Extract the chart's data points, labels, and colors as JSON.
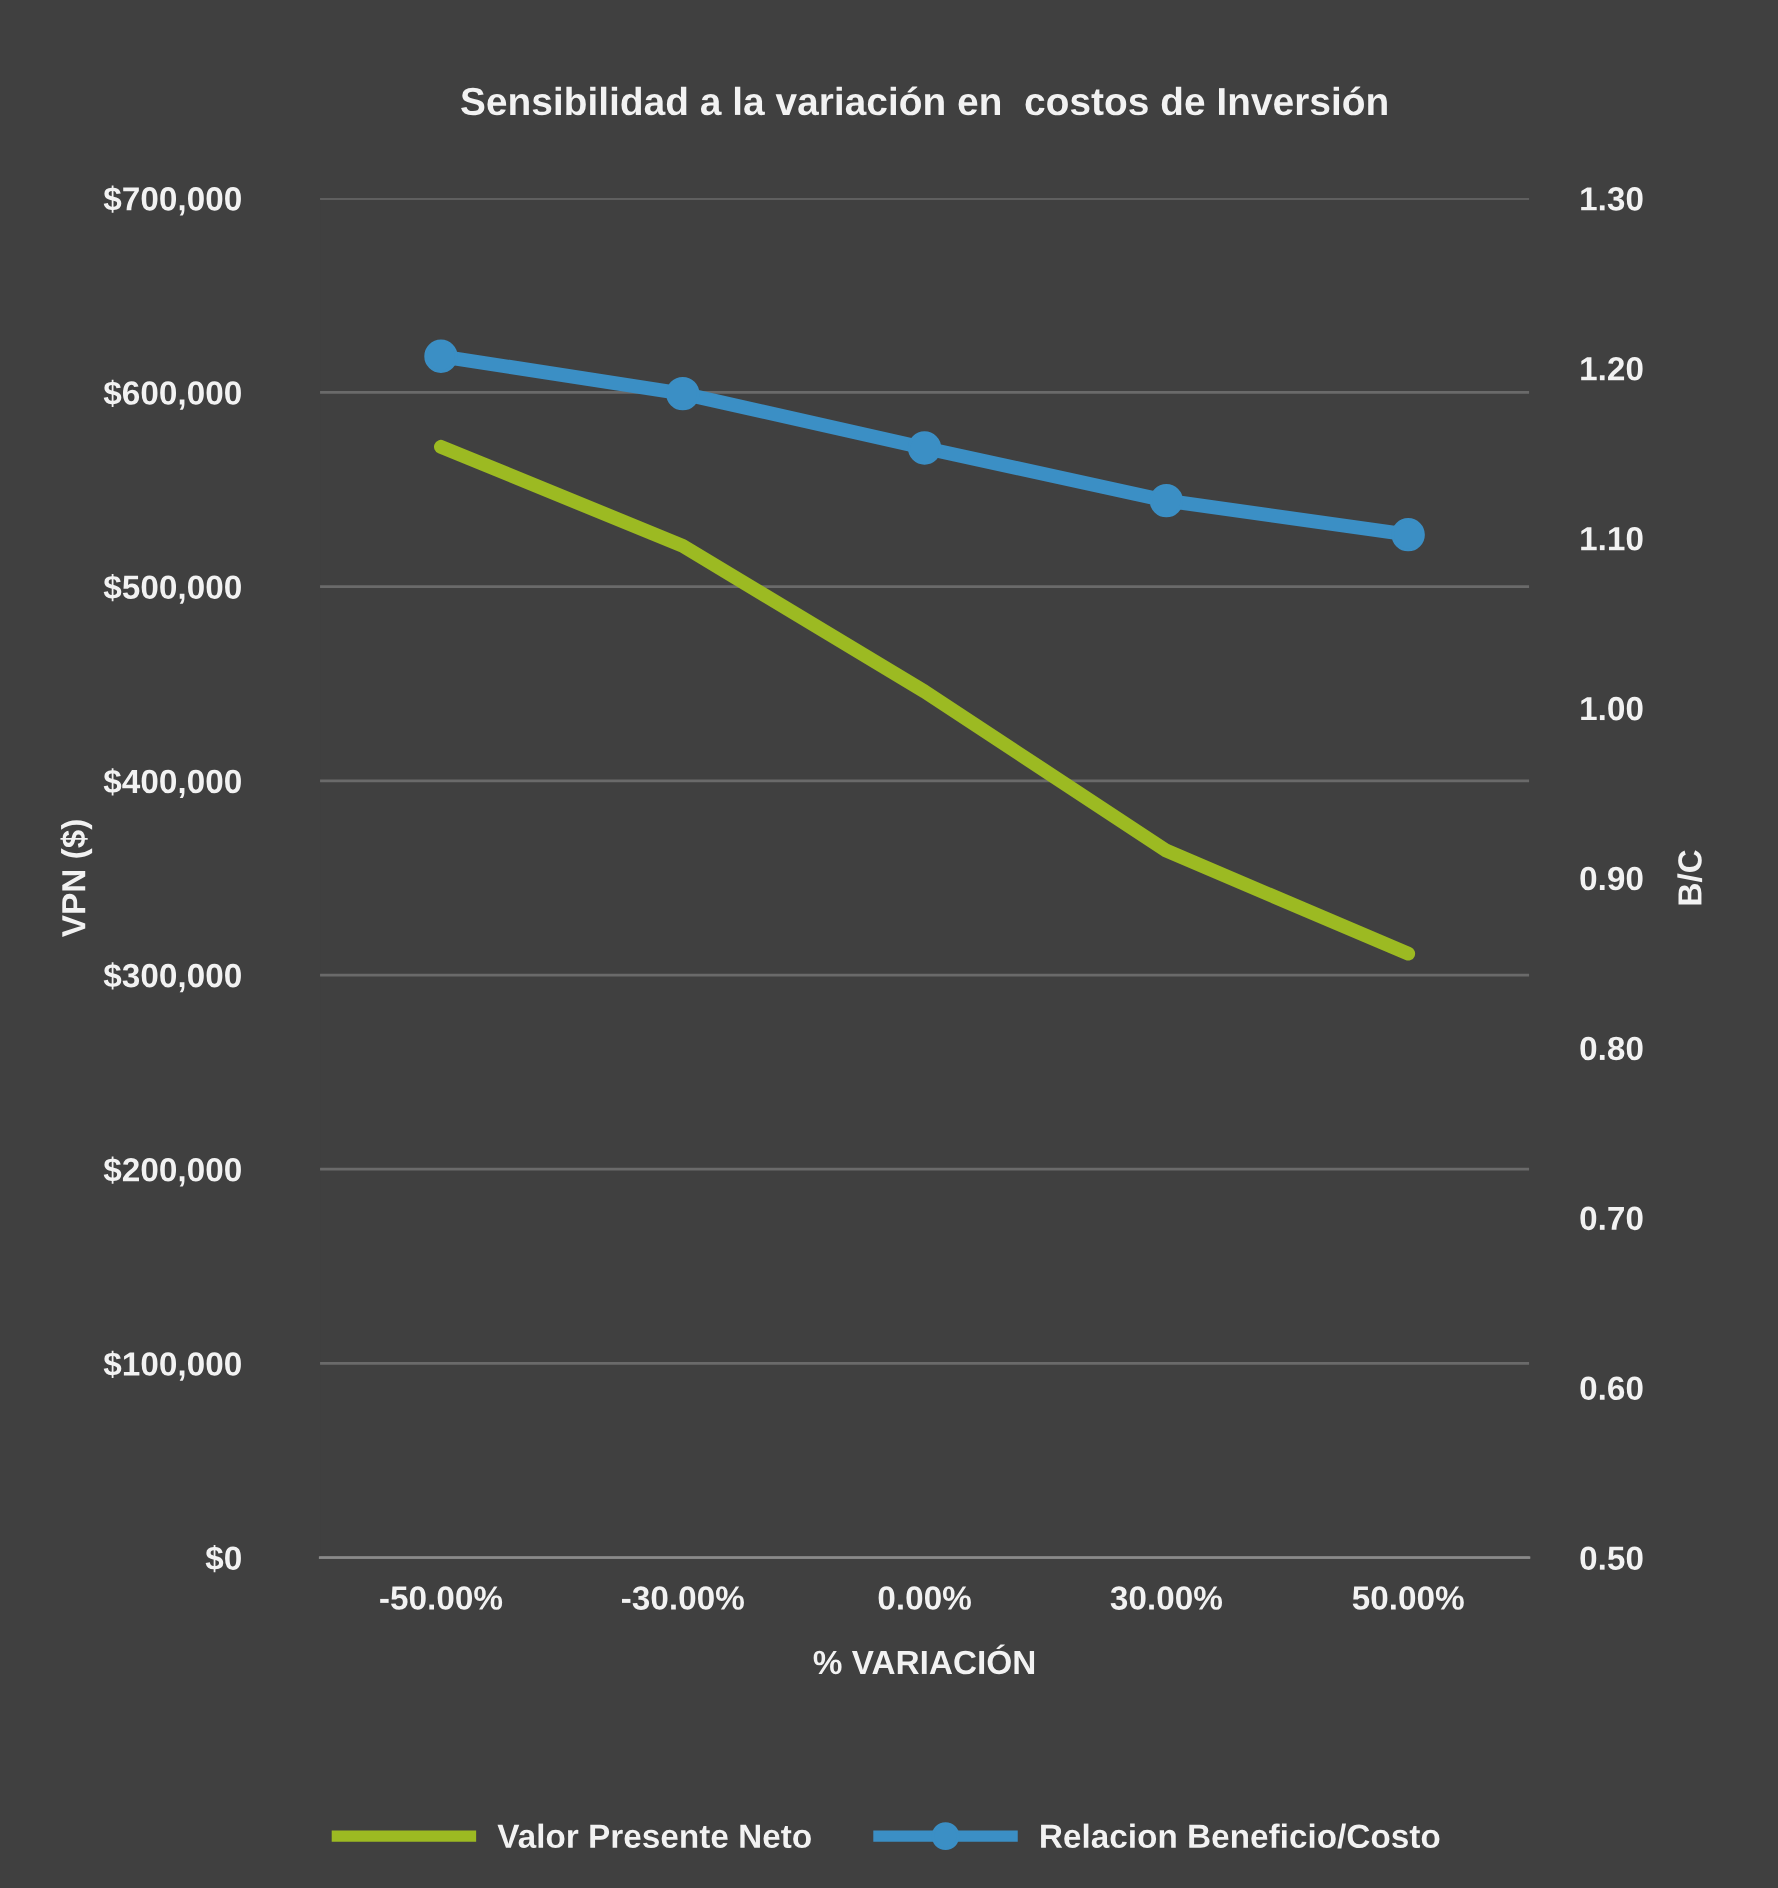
{
  "chart_data": {
    "type": "line",
    "title": "Sensibilidad a la variación en  costos de Inversión",
    "categories": [
      "-50.00%",
      "-30.00%",
      "0.00%",
      "30.00%",
      "50.00%"
    ],
    "xlabel": "% VARIACIÓN",
    "ylabel": "VPN ($)",
    "y2label": "B/C",
    "series": [
      {
        "name": "Valor Presente Neto",
        "color": "#9cba22",
        "values": [
          572000,
          521000,
          446000,
          364000,
          311000
        ],
        "marker": "none"
      },
      {
        "name": "Relacion Beneficio/Costo",
        "color": "#3b8fc5",
        "values": [
          1.207,
          1.185,
          1.153,
          1.122,
          1.102
        ],
        "axis": "y2",
        "marker": "circle"
      }
    ],
    "ylim": [
      0,
      700000
    ],
    "yticks": [
      {
        "value": 0,
        "label": "$0"
      },
      {
        "value": 100000,
        "label": "$100,000"
      },
      {
        "value": 200000,
        "label": "$200,000"
      },
      {
        "value": 300000,
        "label": "$300,000"
      },
      {
        "value": 400000,
        "label": "$400,000"
      },
      {
        "value": 500000,
        "label": "$500,000"
      },
      {
        "value": 600000,
        "label": "$600,000"
      },
      {
        "value": 700000,
        "label": "$700,000"
      }
    ],
    "y2lim": [
      0.5,
      1.3
    ],
    "y2ticks": [
      {
        "value": 0.5,
        "label": "0.50"
      },
      {
        "value": 0.6,
        "label": "0.60"
      },
      {
        "value": 0.7,
        "label": "0.70"
      },
      {
        "value": 0.8,
        "label": "0.80"
      },
      {
        "value": 0.9,
        "label": "0.90"
      },
      {
        "value": 1.0,
        "label": "1.00"
      },
      {
        "value": 1.1,
        "label": "1.10"
      },
      {
        "value": 1.2,
        "label": "1.20"
      },
      {
        "value": 1.3,
        "label": "1.30"
      }
    ],
    "grid": "y",
    "legend": "bottom",
    "line_style": "solid"
  }
}
